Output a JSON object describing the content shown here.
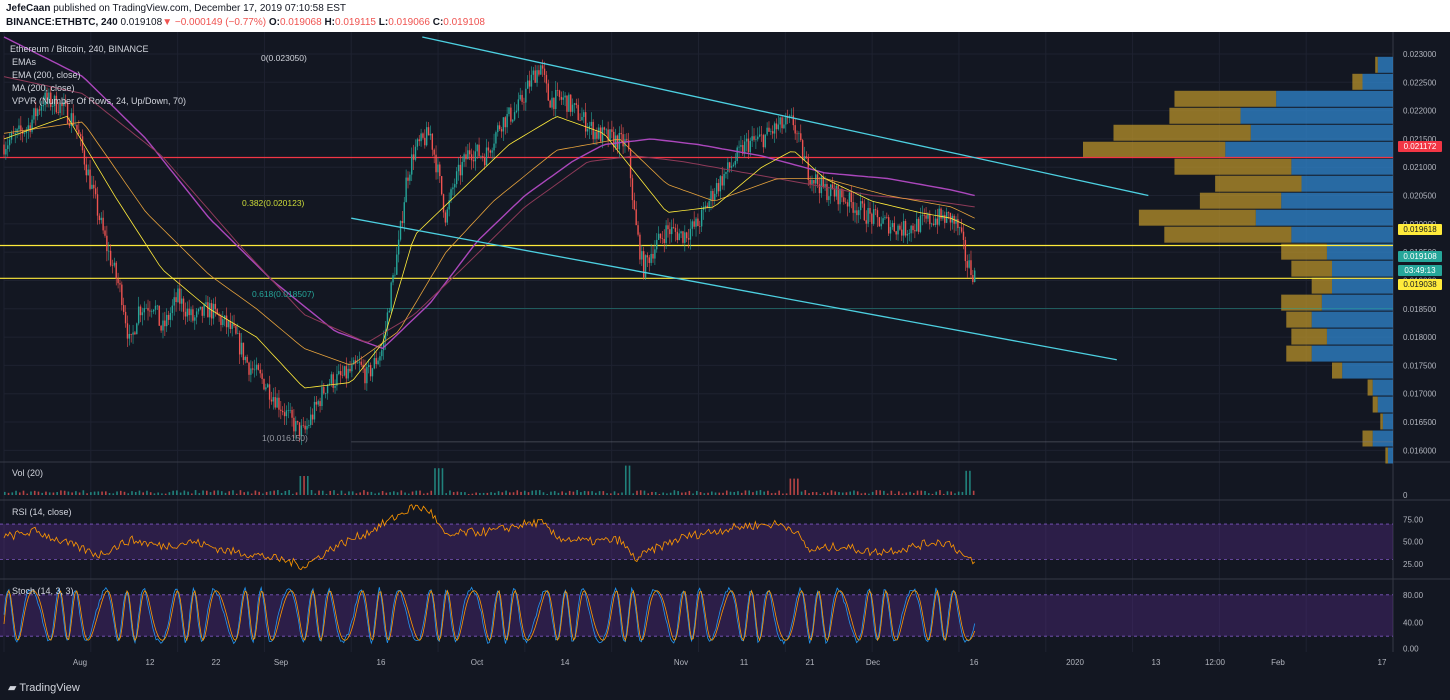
{
  "header": {
    "author": "JefeCaan",
    "published": " published on TradingView.com, December 17, 2019 07:10:58 EST",
    "symbol": "BINANCE:ETHBTC, 240",
    "last": "0.019108",
    "change": "−0.000149 (−0.77%)",
    "o_label": "O:",
    "o": "0.019068",
    "h_label": "H:",
    "h": "0.019115",
    "l_label": "L:",
    "l": "0.019066",
    "c_label": "C:",
    "c": "0.019108"
  },
  "legend": {
    "title": "Ethereum / Bitcoin, 240, BINANCE",
    "emas": "EMAs",
    "ema200": "EMA (200, close)",
    "ma200": "MA (200, close)",
    "vpvr": "VPVR (Number Of Rows, 24, Up/Down, 70)"
  },
  "fib": {
    "top": "0(0.023050)",
    "f382": "0.382(0.020123)",
    "f618": "0.618(0.018507)",
    "bottom": "1(0.016150)"
  },
  "price_tags": {
    "red": "0.021172",
    "yellow_top": "0.019618",
    "current": "0.019108",
    "countdown": "03:49:13",
    "yellow_bottom": "0.019038"
  },
  "panes": {
    "vol": "Vol (20)",
    "rsi": "RSI (14, close)",
    "stoch": "Stoch (14, 3, 3)"
  },
  "footer": {
    "logo": "TradingView"
  },
  "colors": {
    "background": "#131722",
    "up": "#26a69a",
    "down": "#ef5350",
    "trendline": "#4dd0e1",
    "ma_purple": "#ab47bc",
    "yellow": "#ffeb3b",
    "red_level": "#f23645",
    "vpvr_up": "#2e7fc4",
    "vpvr_down": "#b8912a"
  },
  "chart_data": [
    {
      "type": "line",
      "name": "Ethereum / Bitcoin, 240, BINANCE",
      "x_ticks": [
        "Aug",
        "12",
        "22",
        "Sep",
        "16",
        "Oct",
        "14",
        "Nov",
        "11",
        "21",
        "Dec",
        "16",
        "2020",
        "13",
        "12:00",
        "Feb",
        "17"
      ],
      "y_ticks": [
        "0.023000",
        "0.022500",
        "0.022000",
        "0.021500",
        "0.021000",
        "0.020500",
        "0.020000",
        "0.019500",
        "0.019000",
        "0.018500",
        "0.018000",
        "0.017500",
        "0.017000",
        "0.016500",
        "0.016000"
      ],
      "ylim": [
        0.0159,
        0.0233
      ],
      "price_path": [
        [
          0,
          0.0214
        ],
        [
          3,
          0.0217
        ],
        [
          5,
          0.0222
        ],
        [
          7,
          0.0221
        ],
        [
          9,
          0.0218
        ],
        [
          11,
          0.0207
        ],
        [
          13,
          0.0196
        ],
        [
          15,
          0.0187
        ],
        [
          16,
          0.0178
        ],
        [
          17,
          0.0185
        ],
        [
          19,
          0.0186
        ],
        [
          20,
          0.0181
        ],
        [
          22,
          0.0187
        ],
        [
          24,
          0.0183
        ],
        [
          26,
          0.0185
        ],
        [
          29,
          0.0181
        ],
        [
          31,
          0.0175
        ],
        [
          33,
          0.0172
        ],
        [
          35,
          0.0168
        ],
        [
          37,
          0.0164
        ],
        [
          38,
          0.0163
        ],
        [
          39,
          0.0166
        ],
        [
          41,
          0.0172
        ],
        [
          43,
          0.0173
        ],
        [
          45,
          0.0175
        ],
        [
          46,
          0.0173
        ],
        [
          48,
          0.0178
        ],
        [
          49,
          0.0188
        ],
        [
          50,
          0.0196
        ],
        [
          51,
          0.0208
        ],
        [
          52,
          0.0213
        ],
        [
          54,
          0.0216
        ],
        [
          55,
          0.0209
        ],
        [
          56,
          0.0201
        ],
        [
          57,
          0.0207
        ],
        [
          59,
          0.0213
        ],
        [
          61,
          0.0212
        ],
        [
          63,
          0.0218
        ],
        [
          65,
          0.022
        ],
        [
          67,
          0.0226
        ],
        [
          68,
          0.0228
        ],
        [
          69,
          0.0222
        ],
        [
          71,
          0.0222
        ],
        [
          73,
          0.0219
        ],
        [
          75,
          0.0216
        ],
        [
          77,
          0.0215
        ],
        [
          79,
          0.0214
        ],
        [
          80,
          0.02
        ],
        [
          81,
          0.0192
        ],
        [
          82,
          0.0195
        ],
        [
          84,
          0.0199
        ],
        [
          86,
          0.0198
        ],
        [
          88,
          0.02
        ],
        [
          90,
          0.0206
        ],
        [
          92,
          0.021
        ],
        [
          94,
          0.0214
        ],
        [
          96,
          0.0215
        ],
        [
          98,
          0.0217
        ],
        [
          100,
          0.0218
        ],
        [
          101,
          0.0213
        ],
        [
          102,
          0.0209
        ],
        [
          104,
          0.0206
        ],
        [
          106,
          0.0205
        ],
        [
          108,
          0.0203
        ],
        [
          110,
          0.0201
        ],
        [
          112,
          0.02
        ],
        [
          114,
          0.0199
        ],
        [
          116,
          0.02
        ],
        [
          118,
          0.0201
        ],
        [
          120,
          0.0201
        ],
        [
          121,
          0.0199
        ],
        [
          122,
          0.0193
        ],
        [
          123,
          0.0191
        ]
      ],
      "x_max": 176,
      "ema_fast_path": [
        [
          0,
          0.0215
        ],
        [
          8,
          0.0219
        ],
        [
          14,
          0.0205
        ],
        [
          20,
          0.0192
        ],
        [
          26,
          0.0185
        ],
        [
          32,
          0.018
        ],
        [
          38,
          0.0171
        ],
        [
          44,
          0.0172
        ],
        [
          48,
          0.0179
        ],
        [
          52,
          0.0198
        ],
        [
          58,
          0.0206
        ],
        [
          64,
          0.0214
        ],
        [
          70,
          0.0219
        ],
        [
          76,
          0.0216
        ],
        [
          80,
          0.0209
        ],
        [
          84,
          0.0202
        ],
        [
          90,
          0.0203
        ],
        [
          96,
          0.021
        ],
        [
          100,
          0.0213
        ],
        [
          104,
          0.0208
        ],
        [
          110,
          0.0204
        ],
        [
          116,
          0.0202
        ],
        [
          120,
          0.0201
        ],
        [
          123,
          0.0199
        ]
      ],
      "ema_slow_path": [
        [
          0,
          0.0216
        ],
        [
          10,
          0.0218
        ],
        [
          18,
          0.0202
        ],
        [
          26,
          0.0191
        ],
        [
          32,
          0.0185
        ],
        [
          38,
          0.0178
        ],
        [
          44,
          0.0175
        ],
        [
          50,
          0.0181
        ],
        [
          56,
          0.0195
        ],
        [
          62,
          0.0204
        ],
        [
          70,
          0.0213
        ],
        [
          78,
          0.0215
        ],
        [
          84,
          0.0207
        ],
        [
          90,
          0.0204
        ],
        [
          98,
          0.0208
        ],
        [
          104,
          0.0208
        ],
        [
          112,
          0.0205
        ],
        [
          120,
          0.0203
        ],
        [
          123,
          0.0201
        ]
      ],
      "ema200_path": [
        [
          0,
          0.0226
        ],
        [
          10,
          0.0223
        ],
        [
          20,
          0.0212
        ],
        [
          30,
          0.0196
        ],
        [
          38,
          0.0184
        ],
        [
          46,
          0.0179
        ],
        [
          52,
          0.0184
        ],
        [
          58,
          0.0192
        ],
        [
          66,
          0.0203
        ],
        [
          74,
          0.0211
        ],
        [
          80,
          0.0212
        ],
        [
          86,
          0.0211
        ],
        [
          94,
          0.0209
        ],
        [
          102,
          0.0207
        ],
        [
          110,
          0.0205
        ],
        [
          118,
          0.0204
        ],
        [
          123,
          0.0203
        ]
      ],
      "ma200_path": [
        [
          0,
          0.0233
        ],
        [
          10,
          0.0226
        ],
        [
          18,
          0.0215
        ],
        [
          26,
          0.0201
        ],
        [
          34,
          0.019
        ],
        [
          42,
          0.0181
        ],
        [
          48,
          0.0178
        ],
        [
          54,
          0.0186
        ],
        [
          60,
          0.0197
        ],
        [
          66,
          0.0205
        ],
        [
          72,
          0.0211
        ],
        [
          76,
          0.0214
        ],
        [
          82,
          0.0215
        ],
        [
          88,
          0.0214
        ],
        [
          96,
          0.0212
        ],
        [
          104,
          0.0209
        ],
        [
          112,
          0.0208
        ],
        [
          120,
          0.0206
        ],
        [
          123,
          0.0205
        ]
      ],
      "upper_trendline": [
        [
          53,
          0.0233
        ],
        [
          145,
          0.0205
        ]
      ],
      "lower_trendline": [
        [
          44,
          0.0201
        ],
        [
          141,
          0.0176
        ]
      ],
      "levels": {
        "red": 0.021172,
        "yellow_top": 0.019618,
        "yellow_bottom": 0.019038,
        "fib_0": 0.02305,
        "fib_382": 0.020123,
        "fib_618": 0.018507,
        "fib_1": 0.01615
      },
      "vpvr": [
        [
          0.0228,
          0.005,
          0.03
        ],
        [
          0.0225,
          0.02,
          0.06
        ],
        [
          0.0222,
          0.2,
          0.23
        ],
        [
          0.0219,
          0.14,
          0.3
        ],
        [
          0.0216,
          0.27,
          0.28
        ],
        [
          0.0213,
          0.28,
          0.33
        ],
        [
          0.021,
          0.23,
          0.2
        ],
        [
          0.0207,
          0.17,
          0.18
        ],
        [
          0.0204,
          0.16,
          0.22
        ],
        [
          0.0201,
          0.23,
          0.27
        ],
        [
          0.0198,
          0.25,
          0.2
        ],
        [
          0.0195,
          0.09,
          0.13
        ],
        [
          0.0192,
          0.08,
          0.12
        ],
        [
          0.0189,
          0.04,
          0.12
        ],
        [
          0.0186,
          0.08,
          0.14
        ],
        [
          0.0183,
          0.05,
          0.16
        ],
        [
          0.018,
          0.07,
          0.13
        ],
        [
          0.0177,
          0.05,
          0.16
        ],
        [
          0.0174,
          0.02,
          0.1
        ],
        [
          0.0171,
          0.01,
          0.04
        ],
        [
          0.0168,
          0.01,
          0.03
        ],
        [
          0.0165,
          0.005,
          0.02
        ],
        [
          0.0162,
          0.02,
          0.04
        ],
        [
          0.0159,
          0.005,
          0.01
        ]
      ]
    },
    {
      "type": "bar",
      "name": "Vol (20)",
      "y_ticks": [
        "0"
      ],
      "spikes": [
        [
          38,
          0.5
        ],
        [
          55,
          0.8
        ],
        [
          79,
          0.9
        ],
        [
          100,
          0.4
        ],
        [
          122,
          0.7
        ]
      ]
    },
    {
      "type": "line",
      "name": "RSI (14, close)",
      "y_ticks": [
        "75.00",
        "50.00",
        "25.00"
      ],
      "ylim": [
        10,
        95
      ],
      "band": [
        30,
        70
      ],
      "path": [
        [
          0,
          55
        ],
        [
          4,
          62
        ],
        [
          8,
          48
        ],
        [
          12,
          35
        ],
        [
          16,
          52
        ],
        [
          20,
          45
        ],
        [
          24,
          50
        ],
        [
          28,
          40
        ],
        [
          32,
          35
        ],
        [
          36,
          28
        ],
        [
          38,
          22
        ],
        [
          42,
          45
        ],
        [
          46,
          60
        ],
        [
          50,
          80
        ],
        [
          52,
          90
        ],
        [
          54,
          85
        ],
        [
          56,
          55
        ],
        [
          58,
          60
        ],
        [
          62,
          62
        ],
        [
          66,
          70
        ],
        [
          68,
          72
        ],
        [
          70,
          55
        ],
        [
          74,
          50
        ],
        [
          78,
          52
        ],
        [
          80,
          30
        ],
        [
          82,
          40
        ],
        [
          86,
          55
        ],
        [
          90,
          62
        ],
        [
          94,
          68
        ],
        [
          98,
          70
        ],
        [
          100,
          65
        ],
        [
          102,
          40
        ],
        [
          106,
          45
        ],
        [
          110,
          38
        ],
        [
          114,
          42
        ],
        [
          118,
          50
        ],
        [
          120,
          48
        ],
        [
          122,
          30
        ],
        [
          123,
          26
        ]
      ]
    },
    {
      "type": "line",
      "name": "Stoch (14, 3, 3)",
      "y_ticks": [
        "80.00",
        "40.00",
        "0.00"
      ],
      "ylim": [
        0,
        100
      ],
      "band": [
        20,
        80
      ],
      "cycles": 42
    }
  ]
}
